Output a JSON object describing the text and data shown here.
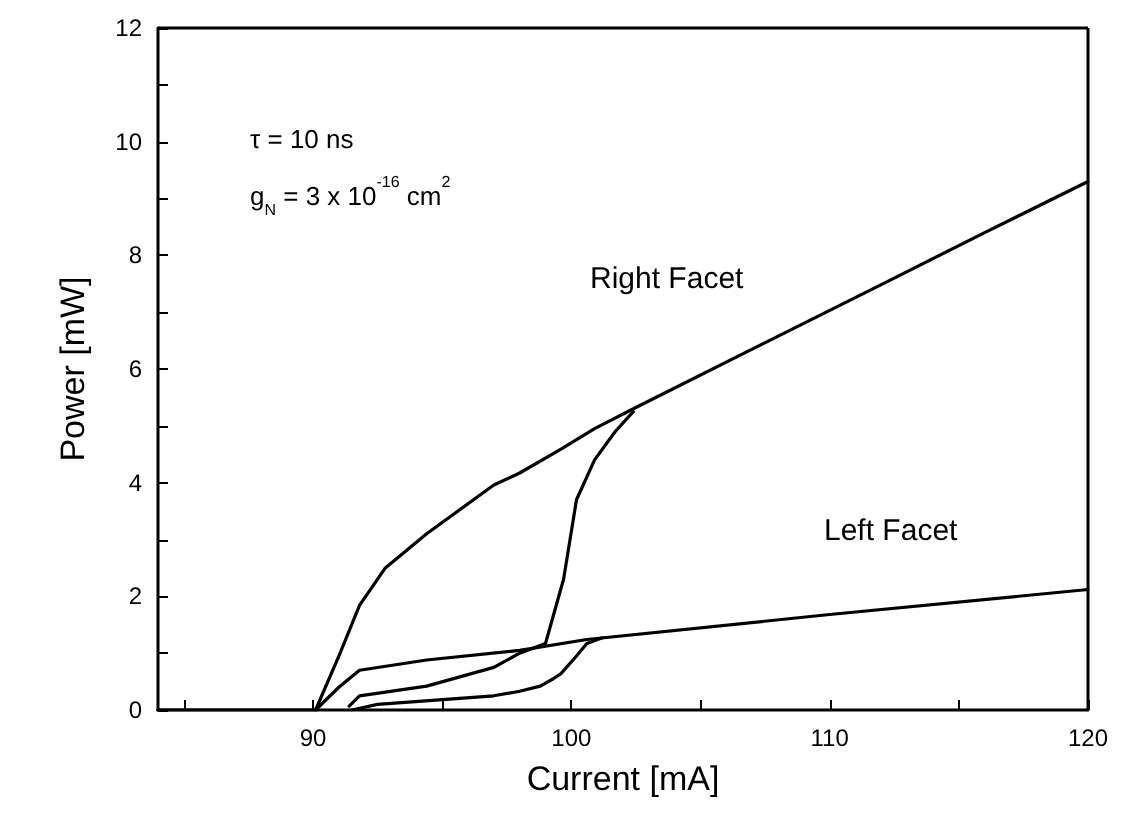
{
  "chart_data": {
    "type": "line",
    "xlabel": "Current [mA]",
    "ylabel": "Power [mW]",
    "series": [
      {
        "color": "#000000",
        "x": [
          84,
          90,
          90.1,
          91.05,
          91.8,
          92.8,
          94.4,
          97.0,
          98.0,
          99.6,
          100.9,
          102.4,
          107,
          112.5,
          116,
          120
        ],
        "values": [
          0,
          0,
          0,
          1.0,
          1.84,
          2.5,
          3.1,
          3.96,
          4.17,
          4.59,
          4.95,
          5.3,
          6.35,
          7.6,
          8.4,
          9.3
        ]
      },
      {
        "color": "#000000",
        "x": [
          91.4,
          91.8,
          94.4,
          97.0,
          98.0,
          99.0,
          99.7,
          100.2,
          100.9,
          101.7,
          102.4
        ],
        "values": [
          0.07,
          0.25,
          0.42,
          0.75,
          1.0,
          1.17,
          2.3,
          3.7,
          4.4,
          4.9,
          5.25
        ]
      },
      {
        "color": "#000000",
        "x": [
          90.1,
          91.0,
          91.8,
          94.4,
          98.0,
          100.6,
          110,
          120
        ],
        "values": [
          0,
          0.4,
          0.7,
          0.88,
          1.05,
          1.24,
          1.68,
          2.12
        ]
      },
      {
        "color": "#000000",
        "x": [
          91.5,
          92.5,
          97.0,
          98.0,
          98.8,
          99.3,
          99.6,
          100.2,
          100.6,
          101.2
        ],
        "values": [
          0,
          0.1,
          0.25,
          0.33,
          0.42,
          0.55,
          0.64,
          0.95,
          1.17,
          1.27
        ]
      }
    ],
    "xlim": [
      84,
      120
    ],
    "xticks": [
      {
        "value": 85,
        "label": null
      },
      90,
      {
        "value": 95,
        "label": null
      },
      100,
      {
        "value": 105,
        "label": null
      },
      110,
      {
        "value": 115,
        "label": null
      },
      120
    ],
    "ylim": [
      0,
      12
    ],
    "yticks": [
      0,
      {
        "value": 1,
        "label": null
      },
      2,
      {
        "value": 3,
        "label": null
      },
      4,
      {
        "value": 5,
        "label": null
      },
      6,
      {
        "value": 7,
        "label": null
      },
      8,
      {
        "value": 9,
        "label": null
      },
      10,
      {
        "value": 11,
        "label": null
      },
      12
    ],
    "grid": false,
    "marker": "none",
    "line_style": "solid",
    "annotations": [
      "τ = 10 ns",
      "g$_{N}$ = 3 x 10$^{-16}$ cm$^{2}$",
      "Right Facet",
      "Left Facet"
    ]
  }
}
